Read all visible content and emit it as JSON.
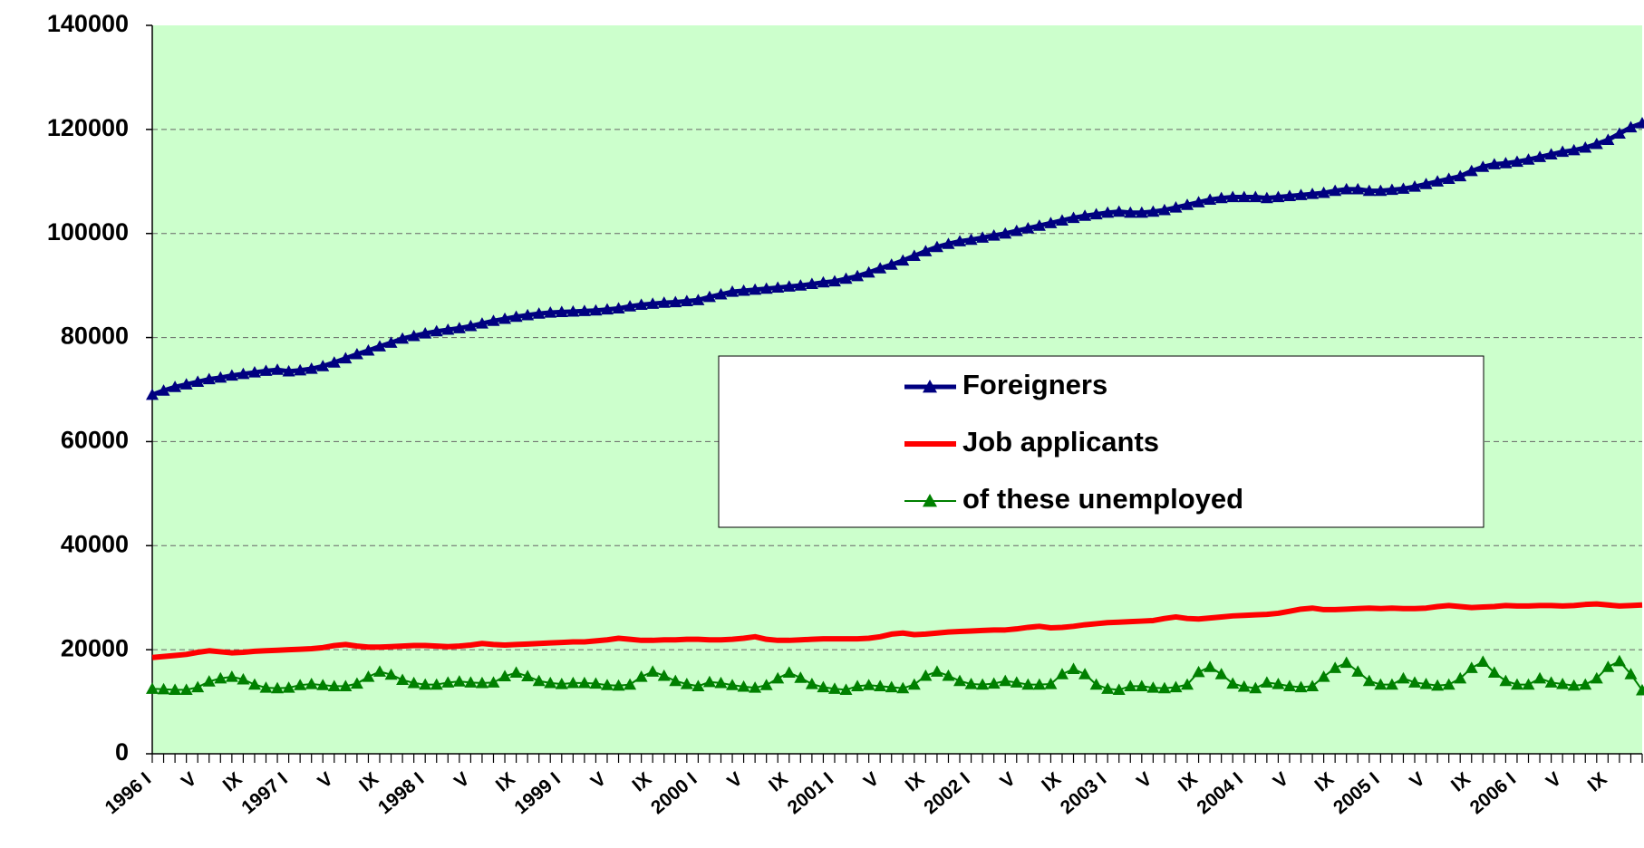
{
  "chart_data": {
    "type": "line",
    "categories": [
      "1996 I",
      null,
      null,
      null,
      "V",
      null,
      null,
      null,
      "IX",
      null,
      null,
      null,
      "1997 I",
      null,
      null,
      null,
      "V",
      null,
      null,
      null,
      "IX",
      null,
      null,
      null,
      "1998 I",
      null,
      null,
      null,
      "V",
      null,
      null,
      null,
      "IX",
      null,
      null,
      null,
      "1999 I",
      null,
      null,
      null,
      "V",
      null,
      null,
      null,
      "IX",
      null,
      null,
      null,
      "2000 I",
      null,
      null,
      null,
      "V",
      null,
      null,
      null,
      "IX",
      null,
      null,
      null,
      "2001 I",
      null,
      null,
      null,
      "V",
      null,
      null,
      null,
      "IX",
      null,
      null,
      null,
      "2002 I",
      null,
      null,
      null,
      "V",
      null,
      null,
      null,
      "IX",
      null,
      null,
      null,
      "2003 I",
      null,
      null,
      null,
      "V",
      null,
      null,
      null,
      "IX",
      null,
      null,
      null,
      "2004 I",
      null,
      null,
      null,
      "V",
      null,
      null,
      null,
      "IX",
      null,
      null,
      null,
      "2005 I",
      null,
      null,
      null,
      "V",
      null,
      null,
      null,
      "IX",
      null,
      null,
      null,
      "2006 I",
      null,
      null,
      null,
      "V",
      null,
      null,
      null,
      "IX",
      null,
      null,
      null
    ],
    "series": [
      {
        "name": "Foreigners",
        "color": "#000080",
        "marker": "triangle",
        "line_width": 5,
        "values": [
          69000,
          69800,
          70500,
          71000,
          71500,
          72000,
          72300,
          72700,
          73000,
          73300,
          73600,
          73800,
          73500,
          73700,
          74000,
          74500,
          75200,
          76000,
          76800,
          77500,
          78300,
          79000,
          79800,
          80300,
          80800,
          81200,
          81500,
          81800,
          82200,
          82700,
          83200,
          83600,
          84000,
          84300,
          84600,
          84800,
          84900,
          85000,
          85100,
          85200,
          85400,
          85600,
          86000,
          86300,
          86500,
          86700,
          86800,
          87000,
          87200,
          87800,
          88300,
          88800,
          89000,
          89200,
          89400,
          89600,
          89800,
          90000,
          90300,
          90600,
          90800,
          91300,
          91800,
          92500,
          93300,
          94000,
          94800,
          95700,
          96600,
          97400,
          98000,
          98500,
          98800,
          99200,
          99600,
          100000,
          100500,
          101000,
          101500,
          102000,
          102500,
          103000,
          103400,
          103700,
          104000,
          104200,
          104000,
          104000,
          104200,
          104500,
          105000,
          105500,
          106000,
          106500,
          106800,
          107000,
          107000,
          107000,
          106800,
          107000,
          107200,
          107400,
          107600,
          107800,
          108200,
          108500,
          108500,
          108200,
          108200,
          108400,
          108600,
          109000,
          109500,
          110000,
          110500,
          111000,
          112000,
          112800,
          113300,
          113500,
          113800,
          114200,
          114700,
          115200,
          115700,
          116000,
          116500,
          117200,
          118000,
          119200,
          120400,
          121200
        ]
      },
      {
        "name": "Job applicants",
        "color": "#ff0000",
        "line_width": 6,
        "values": [
          18500,
          18700,
          18900,
          19100,
          19500,
          19800,
          19600,
          19400,
          19500,
          19700,
          19800,
          19900,
          20000,
          20100,
          20200,
          20400,
          20800,
          21000,
          20700,
          20500,
          20500,
          20600,
          20700,
          20800,
          20800,
          20700,
          20600,
          20700,
          20900,
          21200,
          21000,
          20900,
          21000,
          21100,
          21200,
          21300,
          21400,
          21500,
          21500,
          21700,
          21900,
          22200,
          22000,
          21800,
          21800,
          21900,
          21900,
          22000,
          22000,
          21900,
          21900,
          22000,
          22200,
          22500,
          22000,
          21800,
          21800,
          21900,
          22000,
          22100,
          22100,
          22100,
          22100,
          22200,
          22500,
          23000,
          23200,
          22900,
          23000,
          23200,
          23400,
          23500,
          23600,
          23700,
          23800,
          23800,
          24000,
          24300,
          24500,
          24200,
          24300,
          24500,
          24800,
          25000,
          25200,
          25300,
          25400,
          25500,
          25600,
          26000,
          26300,
          26000,
          25900,
          26100,
          26300,
          26500,
          26600,
          26700,
          26800,
          27000,
          27400,
          27800,
          28000,
          27700,
          27700,
          27800,
          27900,
          28000,
          27900,
          28000,
          27900,
          27900,
          28000,
          28300,
          28500,
          28300,
          28100,
          28200,
          28300,
          28500,
          28400,
          28400,
          28500,
          28500,
          28400,
          28500,
          28700,
          28800,
          28600,
          28400,
          28500,
          28600
        ]
      },
      {
        "name": "of these unemployed",
        "color": "#008000",
        "marker": "triangle",
        "line_width": 2,
        "values": [
          12500,
          12400,
          12300,
          12300,
          12800,
          13900,
          14500,
          14800,
          14300,
          13300,
          12700,
          12600,
          12700,
          13200,
          13400,
          13200,
          13000,
          13000,
          13500,
          14800,
          15800,
          15200,
          14200,
          13600,
          13300,
          13300,
          13700,
          13900,
          13700,
          13600,
          13700,
          14900,
          15600,
          14900,
          14000,
          13600,
          13400,
          13600,
          13600,
          13500,
          13200,
          13100,
          13300,
          14800,
          15800,
          15000,
          14000,
          13400,
          13000,
          13800,
          13600,
          13200,
          12900,
          12700,
          13200,
          14500,
          15600,
          14600,
          13400,
          12800,
          12500,
          12300,
          13000,
          13200,
          13000,
          12800,
          12600,
          13300,
          15000,
          15800,
          15000,
          14000,
          13400,
          13300,
          13500,
          14000,
          13700,
          13300,
          13300,
          13400,
          15300,
          16300,
          15300,
          13300,
          12500,
          12300,
          13000,
          13000,
          12700,
          12600,
          12800,
          13300,
          15700,
          16700,
          15300,
          13500,
          12900,
          12600,
          13700,
          13400,
          13000,
          12800,
          13000,
          14800,
          16500,
          17500,
          15800,
          14000,
          13300,
          13300,
          14500,
          13700,
          13400,
          13100,
          13300,
          14500,
          16500,
          17700,
          15600,
          14000,
          13300,
          13300,
          14500,
          13700,
          13400,
          13100,
          13300,
          14500,
          16700,
          17800,
          15300,
          12200
        ]
      }
    ],
    "ylim": [
      0,
      140000
    ],
    "yticks": [
      0,
      20000,
      40000,
      60000,
      80000,
      100000,
      120000,
      140000
    ],
    "grid": true,
    "background": "#ccffcc",
    "legend_position": "center"
  }
}
